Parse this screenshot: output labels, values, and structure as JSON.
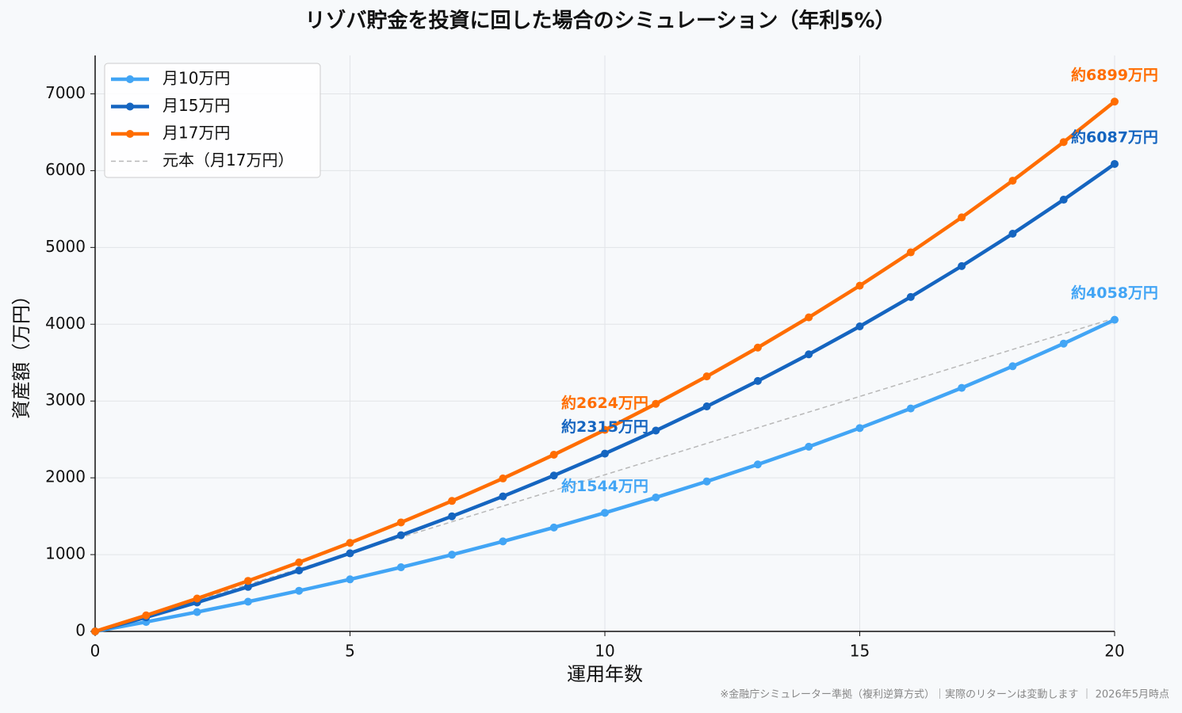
{
  "chart_data": {
    "type": "line",
    "title": "リゾバ貯金を投資に回した場合のシミュレーション（年利5%）",
    "x_label": "運用年数",
    "y_label": "資産額（万円）",
    "footnote": "※金融庁シミュレーター準拠（複利逆算方式）｜実際のリターンは変動します ｜ 2026年5月時点",
    "x": [
      0,
      1,
      2,
      3,
      4,
      5,
      6,
      7,
      8,
      9,
      10,
      11,
      12,
      13,
      14,
      15,
      16,
      17,
      18,
      19,
      20
    ],
    "series": [
      {
        "name": "月10万円",
        "color": "#42a5f5",
        "markers": true,
        "values": [
          0,
          123,
          252,
          387,
          529,
          678,
          835,
          999,
          1172,
          1353,
          1544,
          1744,
          1953,
          2174,
          2405,
          2648,
          2903,
          3171,
          3453,
          3748,
          4058
        ]
      },
      {
        "name": "月15万円",
        "color": "#1565c0",
        "markers": true,
        "values": [
          0,
          184,
          377,
          580,
          793,
          1017,
          1252,
          1499,
          1758,
          2030,
          2315,
          2615,
          2930,
          3261,
          3608,
          3972,
          4355,
          4757,
          5179,
          5622,
          6087
        ]
      },
      {
        "name": "月17万円",
        "color": "#ff6d00",
        "markers": true,
        "values": [
          0,
          209,
          428,
          658,
          899,
          1153,
          1419,
          1699,
          1992,
          2301,
          2624,
          2964,
          3321,
          3696,
          4089,
          4502,
          4936,
          5391,
          5869,
          6372,
          6899
        ]
      },
      {
        "name": "元本（月17万円）",
        "color": "#b8b8b8",
        "markers": false,
        "dashed": true,
        "x": [
          0,
          20
        ],
        "values": [
          0,
          4080
        ]
      }
    ],
    "annotations": [
      {
        "text": "約1544万円",
        "x": 10,
        "y": 1544,
        "color": "#42a5f5"
      },
      {
        "text": "約2315万円",
        "x": 10,
        "y": 2315,
        "color": "#1565c0"
      },
      {
        "text": "約2624万円",
        "x": 10,
        "y": 2624,
        "color": "#ff6d00"
      },
      {
        "text": "約4058万円",
        "x": 20,
        "y": 4058,
        "color": "#42a5f5"
      },
      {
        "text": "約6087万円",
        "x": 20,
        "y": 6087,
        "color": "#1565c0"
      },
      {
        "text": "約6899万円",
        "x": 20,
        "y": 6899,
        "color": "#ff6d00"
      }
    ],
    "xlim": [
      0,
      20
    ],
    "xticks": [
      0,
      5,
      10,
      15,
      20
    ],
    "ylim": [
      0,
      7500
    ],
    "yticks": [
      0,
      1000,
      2000,
      3000,
      4000,
      5000,
      6000,
      7000
    ],
    "grid": true,
    "legend": "upper left"
  }
}
